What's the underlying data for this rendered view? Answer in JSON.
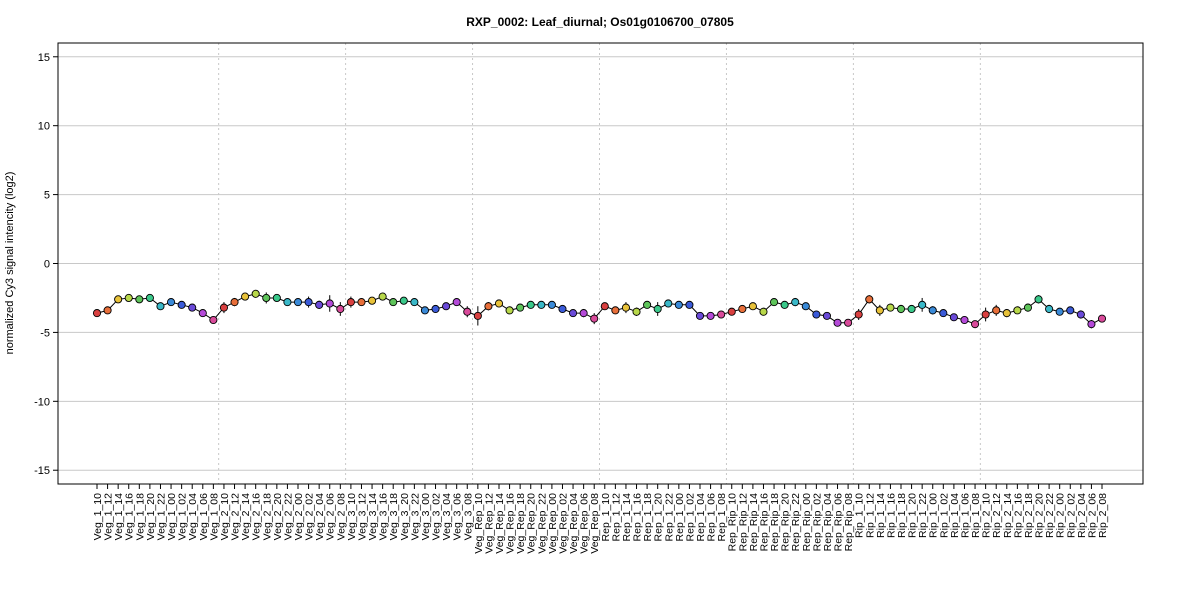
{
  "chart_data": {
    "type": "line",
    "title": "RXP_0002: Leaf_diurnal; Os01g0106700_07805",
    "ylabel": "normalized Cy3 signal intencity (log2)",
    "xlabel": "",
    "ylim": [
      -16,
      16
    ],
    "yticks": [
      -15,
      -10,
      -5,
      0,
      5,
      10,
      15
    ],
    "grid": "horizontal",
    "group_separators_after": [
      "Veg_1_08",
      "Veg_2_08",
      "Veg_3_08",
      "Veg_Rep_08",
      "Rep_1_08",
      "Rep_Rip_08",
      "Rip_1_08"
    ],
    "categories": [
      "Veg_1_10",
      "Veg_1_12",
      "Veg_1_14",
      "Veg_1_16",
      "Veg_1_18",
      "Veg_1_20",
      "Veg_1_22",
      "Veg_1_00",
      "Veg_1_02",
      "Veg_1_04",
      "Veg_1_06",
      "Veg_1_08",
      "Veg_2_10",
      "Veg_2_12",
      "Veg_2_14",
      "Veg_2_16",
      "Veg_2_18",
      "Veg_2_20",
      "Veg_2_22",
      "Veg_2_00",
      "Veg_2_02",
      "Veg_2_04",
      "Veg_2_06",
      "Veg_2_08",
      "Veg_3_10",
      "Veg_3_12",
      "Veg_3_14",
      "Veg_3_16",
      "Veg_3_18",
      "Veg_3_20",
      "Veg_3_22",
      "Veg_3_00",
      "Veg_3_02",
      "Veg_3_04",
      "Veg_3_06",
      "Veg_3_08",
      "Veg_Rep_10",
      "Veg_Rep_12",
      "Veg_Rep_14",
      "Veg_Rep_16",
      "Veg_Rep_18",
      "Veg_Rep_20",
      "Veg_Rep_22",
      "Veg_Rep_00",
      "Veg_Rep_02",
      "Veg_Rep_04",
      "Veg_Rep_06",
      "Veg_Rep_08",
      "Rep_1_10",
      "Rep_1_12",
      "Rep_1_14",
      "Rep_1_16",
      "Rep_1_18",
      "Rep_1_20",
      "Rep_1_22",
      "Rep_1_00",
      "Rep_1_02",
      "Rep_1_04",
      "Rep_1_06",
      "Rep_1_08",
      "Rep_Rip_10",
      "Rep_Rip_12",
      "Rep_Rip_14",
      "Rep_Rip_16",
      "Rep_Rip_18",
      "Rep_Rip_20",
      "Rep_Rip_22",
      "Rep_Rip_00",
      "Rep_Rip_02",
      "Rep_Rip_04",
      "Rep_Rip_06",
      "Rep_Rip_08",
      "Rip_1_10",
      "Rip_1_12",
      "Rip_1_14",
      "Rip_1_16",
      "Rip_1_18",
      "Rip_1_20",
      "Rip_1_22",
      "Rip_1_00",
      "Rip_1_02",
      "Rip_1_04",
      "Rip_1_06",
      "Rip_1_08",
      "Rip_2_10",
      "Rip_2_12",
      "Rip_2_14",
      "Rip_2_16",
      "Rip_2_18",
      "Rip_2_20",
      "Rip_2_22",
      "Rip_2_00",
      "Rip_2_02",
      "Rip_2_04",
      "Rip_2_06",
      "Rip_2_08"
    ],
    "values": [
      -3.6,
      -3.4,
      -2.6,
      -2.5,
      -2.6,
      -2.5,
      -3.1,
      -2.8,
      -3.0,
      -3.2,
      -3.6,
      -4.1,
      -3.2,
      -2.8,
      -2.4,
      -2.2,
      -2.5,
      -2.5,
      -2.8,
      -2.8,
      -2.8,
      -3.0,
      -2.9,
      -3.3,
      -2.8,
      -2.8,
      -2.7,
      -2.4,
      -2.8,
      -2.7,
      -2.8,
      -3.4,
      -3.3,
      -3.1,
      -2.8,
      -3.5,
      -3.8,
      -3.1,
      -2.9,
      -3.4,
      -3.2,
      -3.0,
      -3.0,
      -3.0,
      -3.3,
      -3.6,
      -3.6,
      -4.0,
      -3.1,
      -3.4,
      -3.2,
      -3.5,
      -3.0,
      -3.3,
      -2.9,
      -3.0,
      -3.0,
      -3.8,
      -3.8,
      -3.7,
      -3.5,
      -3.3,
      -3.1,
      -3.5,
      -2.8,
      -3.0,
      -2.8,
      -3.1,
      -3.7,
      -3.8,
      -4.3,
      -4.3,
      -3.7,
      -2.6,
      -3.4,
      -3.2,
      -3.3,
      -3.3,
      -3.0,
      -3.4,
      -3.6,
      -3.9,
      -4.1,
      -4.4,
      -3.7,
      -3.4,
      -3.6,
      -3.4,
      -3.2,
      -2.6,
      -3.3,
      -3.5,
      -3.4,
      -3.7,
      -4.4,
      -4.0
    ],
    "errors": [
      0.2,
      0.2,
      0.15,
      0.15,
      0.15,
      0.2,
      0.15,
      0.15,
      0.15,
      0.15,
      0.2,
      0.2,
      0.4,
      0.3,
      0.2,
      0.2,
      0.4,
      0.2,
      0.15,
      0.2,
      0.4,
      0.3,
      0.6,
      0.5,
      0.4,
      0.2,
      0.2,
      0.2,
      0.2,
      0.2,
      0.15,
      0.15,
      0.2,
      0.2,
      0.2,
      0.4,
      0.7,
      0.3,
      0.2,
      0.2,
      0.2,
      0.2,
      0.15,
      0.15,
      0.2,
      0.2,
      0.3,
      0.4,
      0.2,
      0.2,
      0.4,
      0.3,
      0.2,
      0.5,
      0.2,
      0.2,
      0.2,
      0.15,
      0.15,
      0.2,
      0.2,
      0.2,
      0.2,
      0.2,
      0.2,
      0.2,
      0.3,
      0.2,
      0.2,
      0.15,
      0.15,
      0.2,
      0.4,
      0.3,
      0.4,
      0.2,
      0.3,
      0.2,
      0.5,
      0.3,
      0.2,
      0.2,
      0.2,
      0.2,
      0.5,
      0.4,
      0.3,
      0.2,
      0.3,
      0.3,
      0.3,
      0.2,
      0.2,
      0.3,
      0.3,
      0.2
    ],
    "point_colors": [
      "#d94040",
      "#e86f3a",
      "#e8c23a",
      "#b8d84a",
      "#5ec45a",
      "#3ac88a",
      "#3ab8c8",
      "#3a8ad8",
      "#3a5ad8",
      "#6a4ad8",
      "#b44ad8",
      "#d84a9a",
      "#d94040",
      "#e86f3a",
      "#e8c23a",
      "#b8d84a",
      "#5ec45a",
      "#3ac88a",
      "#3ab8c8",
      "#3a8ad8",
      "#3a5ad8",
      "#6a4ad8",
      "#b44ad8",
      "#d84a9a",
      "#d94040",
      "#e86f3a",
      "#e8c23a",
      "#b8d84a",
      "#5ec45a",
      "#3ac88a",
      "#3ab8c8",
      "#3a8ad8",
      "#3a5ad8",
      "#6a4ad8",
      "#b44ad8",
      "#d84a9a",
      "#d94040",
      "#e86f3a",
      "#e8c23a",
      "#b8d84a",
      "#5ec45a",
      "#3ac88a",
      "#3ab8c8",
      "#3a8ad8",
      "#3a5ad8",
      "#6a4ad8",
      "#b44ad8",
      "#d84a9a",
      "#d94040",
      "#e86f3a",
      "#e8c23a",
      "#b8d84a",
      "#5ec45a",
      "#3ac88a",
      "#3ab8c8",
      "#3a8ad8",
      "#3a5ad8",
      "#6a4ad8",
      "#b44ad8",
      "#d84a9a",
      "#d94040",
      "#e86f3a",
      "#e8c23a",
      "#b8d84a",
      "#5ec45a",
      "#3ac88a",
      "#3ab8c8",
      "#3a8ad8",
      "#3a5ad8",
      "#6a4ad8",
      "#b44ad8",
      "#d84a9a",
      "#d94040",
      "#e86f3a",
      "#e8c23a",
      "#b8d84a",
      "#5ec45a",
      "#3ac88a",
      "#3ab8c8",
      "#3a8ad8",
      "#3a5ad8",
      "#6a4ad8",
      "#b44ad8",
      "#d84a9a",
      "#d94040",
      "#e86f3a",
      "#e8c23a",
      "#b8d84a",
      "#5ec45a",
      "#3ac88a",
      "#3ab8c8",
      "#3a8ad8",
      "#3a5ad8",
      "#6a4ad8",
      "#b44ad8",
      "#d84a9a"
    ],
    "colors": {
      "line": "#000000",
      "gridline": "#c8c8c8",
      "separator": "#c8c8c8",
      "frame": "#000000"
    }
  }
}
